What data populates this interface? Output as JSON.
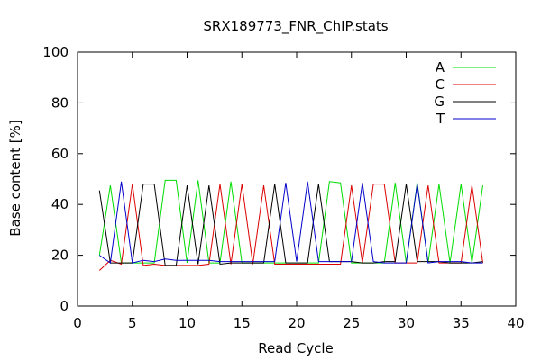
{
  "chart_data": {
    "type": "line",
    "title": "SRX189773_FNR_ChIP.stats",
    "xlabel": "Read Cycle",
    "ylabel": "Base content [%]",
    "xlim": [
      0,
      40
    ],
    "ylim": [
      0,
      100
    ],
    "xticks": [
      0,
      5,
      10,
      15,
      20,
      25,
      30,
      35,
      40
    ],
    "yticks": [
      0,
      20,
      40,
      60,
      80,
      100
    ],
    "grid": false,
    "legend_position": "top-right",
    "x": [
      2,
      3,
      4,
      5,
      6,
      7,
      8,
      9,
      10,
      11,
      12,
      13,
      14,
      15,
      16,
      17,
      18,
      19,
      20,
      21,
      22,
      23,
      24,
      25,
      26,
      27,
      28,
      29,
      30,
      31,
      32,
      33,
      34,
      35,
      36,
      37
    ],
    "series": [
      {
        "name": "A",
        "color": "#00dd00",
        "values": [
          20,
          47.5,
          17,
          17,
          17,
          17,
          49.5,
          49.5,
          17,
          49.5,
          17,
          17,
          49,
          17,
          17,
          17,
          17,
          17,
          17,
          17,
          17,
          49,
          48.5,
          17,
          17,
          17,
          17,
          48.5,
          17,
          48.5,
          17,
          48,
          17,
          48,
          17,
          47.5
        ]
      },
      {
        "name": "C",
        "color": "#dd0000",
        "values": [
          14,
          18,
          16.5,
          48,
          16,
          16.5,
          16,
          16,
          16,
          16,
          16.5,
          48,
          16.5,
          48,
          16.5,
          47.5,
          16.5,
          16.5,
          16.5,
          16.5,
          16.5,
          16.5,
          16.5,
          47.5,
          17,
          48,
          48,
          17,
          17,
          17,
          47.5,
          17,
          17,
          17,
          47.5,
          17
        ]
      },
      {
        "name": "G",
        "color": "#000000",
        "values": [
          45.5,
          17,
          17,
          17,
          48,
          48,
          16,
          16,
          47.5,
          16.5,
          47.5,
          16.5,
          17,
          17,
          17,
          17,
          48,
          17,
          17,
          17,
          48,
          17.5,
          17.5,
          17.5,
          17,
          17,
          17.5,
          17.5,
          48,
          17.5,
          17.5,
          17.5,
          17,
          17,
          17,
          17.5
        ]
      },
      {
        "name": "T",
        "color": "#0000cc",
        "values": [
          20,
          17,
          49,
          17,
          18,
          17.5,
          18.5,
          18,
          18,
          18,
          18,
          17.5,
          17.5,
          17.5,
          17.5,
          17.5,
          17.5,
          48.5,
          17.5,
          49,
          17.5,
          17.5,
          17.5,
          17.5,
          48.5,
          17.5,
          17,
          17,
          17,
          48,
          17,
          17.5,
          17.5,
          17.5,
          17,
          17
        ]
      }
    ]
  }
}
